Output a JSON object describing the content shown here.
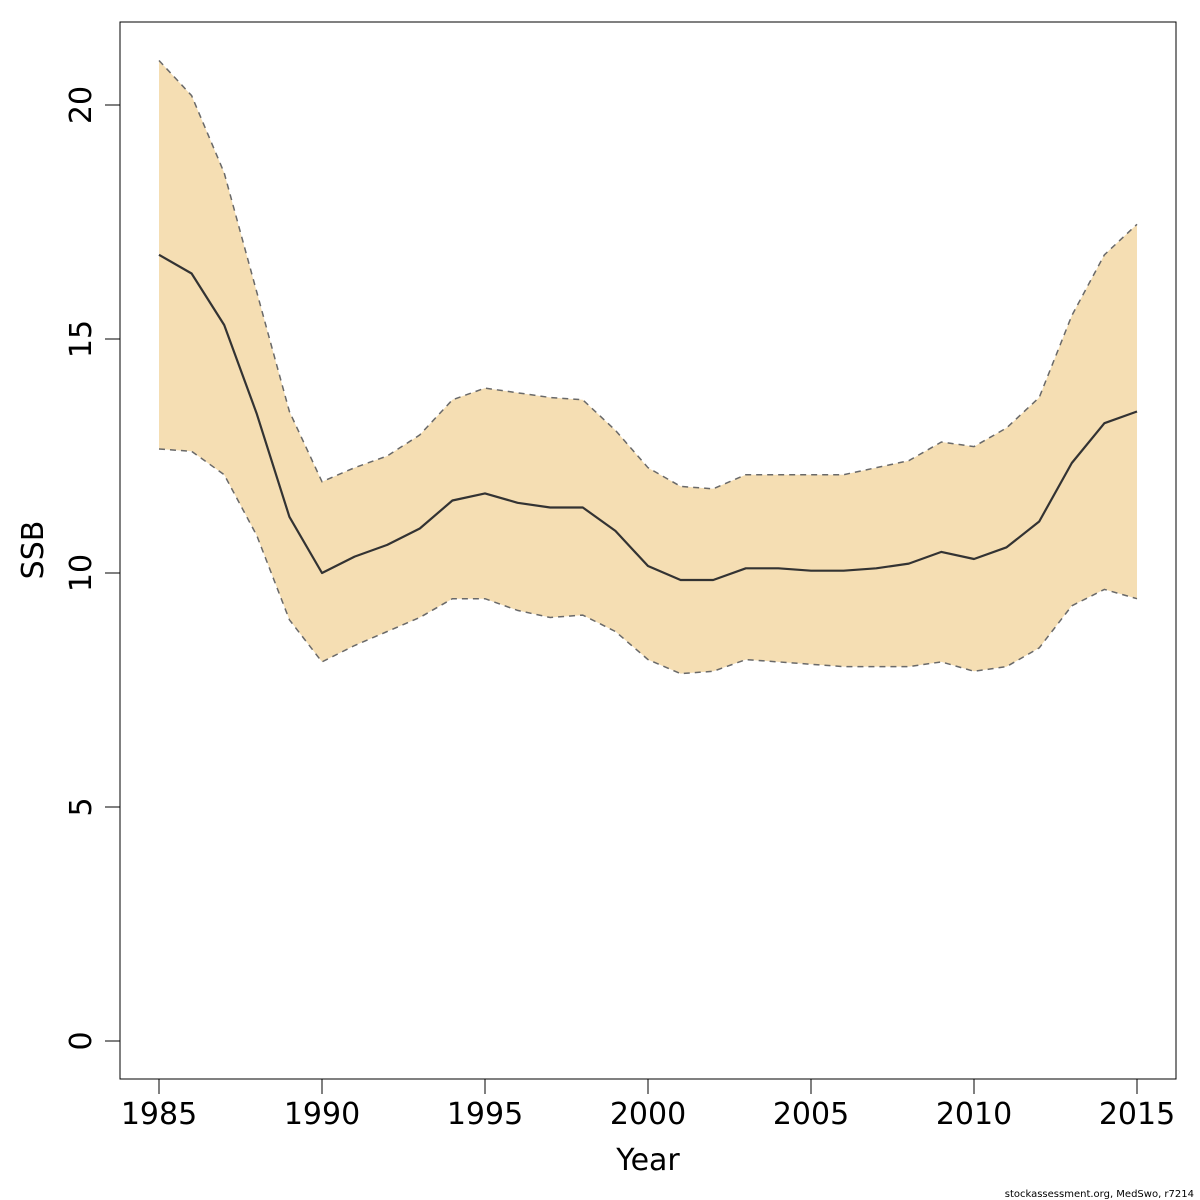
{
  "chart_data": {
    "type": "area",
    "xlabel": "Year",
    "ylabel": "SSB",
    "xlim": [
      1985,
      2015
    ],
    "ylim": [
      0,
      21
    ],
    "x_ticks": [
      1985,
      1990,
      1995,
      2000,
      2005,
      2010,
      2015
    ],
    "y_ticks": [
      0,
      5,
      10,
      15,
      20
    ],
    "x": [
      1985,
      1986,
      1987,
      1988,
      1989,
      1990,
      1991,
      1992,
      1993,
      1994,
      1995,
      1996,
      1997,
      1998,
      1999,
      2000,
      2001,
      2002,
      2003,
      2004,
      2005,
      2006,
      2007,
      2008,
      2009,
      2010,
      2011,
      2012,
      2013,
      2014,
      2015
    ],
    "series": [
      {
        "role": "estimate",
        "values": [
          16.8,
          16.4,
          15.3,
          13.4,
          11.2,
          10.0,
          10.35,
          10.6,
          10.95,
          11.55,
          11.7,
          11.5,
          11.4,
          11.4,
          10.9,
          10.15,
          9.85,
          9.85,
          10.1,
          10.1,
          10.05,
          10.05,
          10.1,
          10.2,
          10.45,
          10.3,
          10.55,
          11.1,
          12.35,
          13.2,
          13.45
        ]
      },
      {
        "role": "lower bound",
        "values": [
          12.65,
          12.6,
          12.1,
          10.8,
          9.0,
          8.1,
          8.45,
          8.75,
          9.05,
          9.45,
          9.45,
          9.2,
          9.05,
          9.1,
          8.75,
          8.15,
          7.85,
          7.9,
          8.15,
          8.1,
          8.05,
          8.0,
          8.0,
          8.0,
          8.1,
          7.9,
          8.0,
          8.4,
          9.3,
          9.65,
          9.45
        ]
      },
      {
        "role": "upper bound",
        "values": [
          20.95,
          20.2,
          18.55,
          16.0,
          13.45,
          11.95,
          12.25,
          12.5,
          12.95,
          13.7,
          13.95,
          13.85,
          13.75,
          13.7,
          13.05,
          12.25,
          11.85,
          11.8,
          12.1,
          12.1,
          12.1,
          12.1,
          12.25,
          12.4,
          12.8,
          12.7,
          13.1,
          13.75,
          15.5,
          16.8,
          17.45
        ]
      }
    ],
    "colors": {
      "band_fill": "#F5DEB3",
      "band_edge": "#696969",
      "line": "#333333"
    }
  },
  "footer": {
    "credit": "stockassessment.org, MedSwo, r7214"
  }
}
